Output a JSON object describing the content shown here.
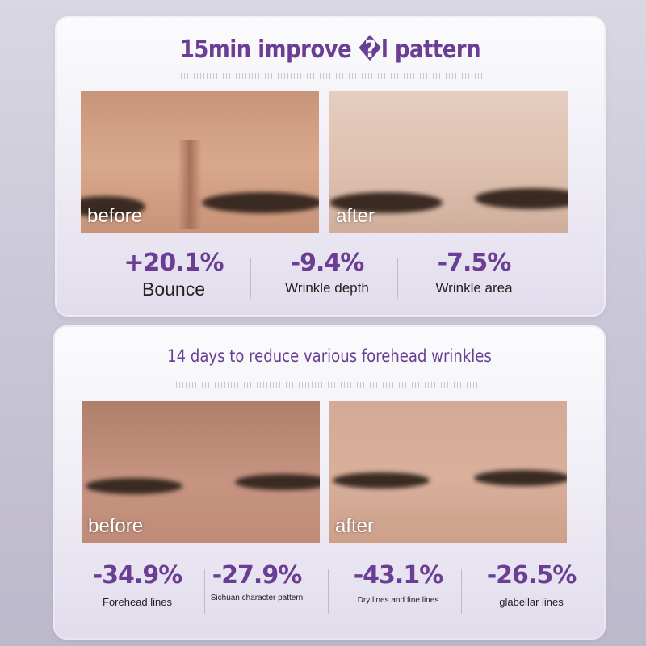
{
  "section1": {
    "title": "15min improve �l pattern",
    "before_label": "before",
    "after_label": "after",
    "stats": [
      {
        "value": "+20.1%",
        "label": "Bounce"
      },
      {
        "value": "-9.4%",
        "label": "Wrinkle depth"
      },
      {
        "value": "-7.5%",
        "label": "Wrinkle area"
      }
    ]
  },
  "section2": {
    "title": "14 days to reduce various forehead wrinkles",
    "before_label": "before",
    "after_label": "after",
    "stats": [
      {
        "value": "-34.9%",
        "label": "Forehead lines"
      },
      {
        "value": "-27.9%",
        "label": "Sichuan character pattern"
      },
      {
        "value": "-43.1%",
        "label": "Dry lines and fine lines"
      },
      {
        "value": "-26.5%",
        "label": "glabellar lines"
      }
    ]
  },
  "colors": {
    "accent": "#6a3e94"
  }
}
